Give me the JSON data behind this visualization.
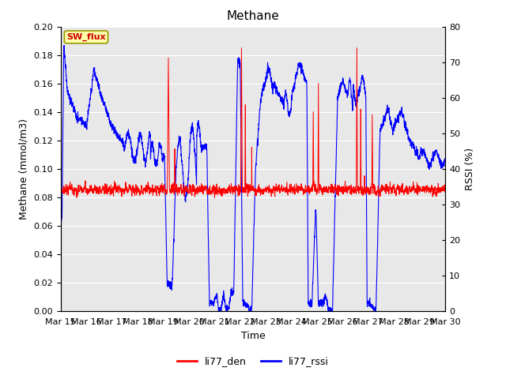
{
  "title": "Methane",
  "xlabel": "Time",
  "ylabel_left": "Methane (mmol/m3)",
  "ylabel_right": "RSSI (%)",
  "ylim_left": [
    0.0,
    0.2
  ],
  "ylim_right": [
    0,
    80
  ],
  "yticks_left": [
    0.0,
    0.02,
    0.04,
    0.06,
    0.08,
    0.1,
    0.12,
    0.14,
    0.16,
    0.18,
    0.2
  ],
  "yticks_right": [
    0,
    10,
    20,
    30,
    40,
    50,
    60,
    70,
    80
  ],
  "xtick_labels": [
    "Mar 15",
    "Mar 16",
    "Mar 17",
    "Mar 18",
    "Mar 19",
    "Mar 20",
    "Mar 21",
    "Mar 22",
    "Mar 23",
    "Mar 24",
    "Mar 25",
    "Mar 26",
    "Mar 27",
    "Mar 28",
    "Mar 29",
    "Mar 30"
  ],
  "color_den": "#ff0000",
  "color_rssi": "#0000ff",
  "legend_label_den": "li77_den",
  "legend_label_rssi": "li77_rssi",
  "sw_flux_box_color": "#ffffaa",
  "sw_flux_text_color": "#cc0000",
  "sw_flux_border_color": "#999900",
  "background_color": "#e8e8e8",
  "grid_color": "#ffffff",
  "title_fontsize": 11,
  "axis_label_fontsize": 9,
  "tick_fontsize": 8
}
